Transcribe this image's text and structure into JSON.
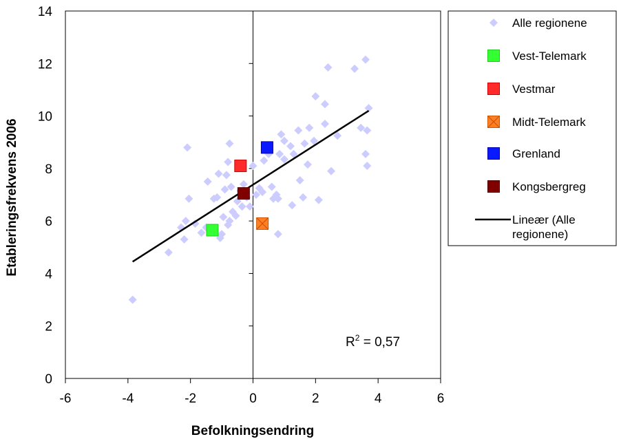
{
  "chart_data": {
    "type": "scatter",
    "xlabel": "Befolkningsendring",
    "ylabel": "Etableringsfrekvens 2006",
    "xlim": [
      -6,
      6
    ],
    "ylim": [
      0,
      14
    ],
    "x_ticks": [
      "-6",
      "-4",
      "-2",
      "0",
      "2",
      "4",
      "6"
    ],
    "y_ticks": [
      "0",
      "2",
      "4",
      "6",
      "8",
      "10",
      "12",
      "14"
    ],
    "grid": false,
    "legend_position": "right",
    "annotation": {
      "r2_prefix": "R",
      "r2_sup": "2",
      "r2_suffix": " = 0,57"
    },
    "series": [
      {
        "name": "Alle regionene",
        "marker": "diamond",
        "color": "#ccccff",
        "points": [
          [
            -3.85,
            3.0
          ],
          [
            -2.7,
            4.8
          ],
          [
            -2.2,
            5.3
          ],
          [
            -2.3,
            5.75
          ],
          [
            -2.15,
            6.0
          ],
          [
            -2.05,
            6.85
          ],
          [
            -2.1,
            8.8
          ],
          [
            -1.85,
            5.9
          ],
          [
            -1.65,
            5.55
          ],
          [
            -1.5,
            5.75
          ],
          [
            -1.45,
            7.5
          ],
          [
            -1.25,
            6.85
          ],
          [
            -1.15,
            6.9
          ],
          [
            -1.1,
            7.8
          ],
          [
            -1.05,
            5.35
          ],
          [
            -1.0,
            5.5
          ],
          [
            -0.95,
            6.15
          ],
          [
            -0.9,
            7.2
          ],
          [
            -0.85,
            7.75
          ],
          [
            -0.8,
            8.25
          ],
          [
            -0.8,
            5.85
          ],
          [
            -0.75,
            6.0
          ],
          [
            -0.75,
            8.95
          ],
          [
            -0.7,
            7.3
          ],
          [
            -0.65,
            6.35
          ],
          [
            -0.55,
            6.2
          ],
          [
            -0.5,
            6.75
          ],
          [
            -0.4,
            7.15
          ],
          [
            -0.35,
            6.55
          ],
          [
            -0.3,
            7.4
          ],
          [
            -0.2,
            6.9
          ],
          [
            -0.1,
            6.55
          ],
          [
            0.0,
            8.1
          ],
          [
            0.1,
            7.0
          ],
          [
            0.2,
            7.25
          ],
          [
            0.3,
            7.1
          ],
          [
            0.35,
            8.3
          ],
          [
            0.5,
            8.55
          ],
          [
            0.6,
            7.3
          ],
          [
            0.65,
            6.85
          ],
          [
            0.75,
            7.0
          ],
          [
            0.8,
            5.5
          ],
          [
            0.8,
            6.85
          ],
          [
            0.85,
            8.55
          ],
          [
            0.9,
            9.3
          ],
          [
            1.0,
            8.35
          ],
          [
            1.0,
            9.05
          ],
          [
            1.2,
            8.85
          ],
          [
            1.25,
            6.6
          ],
          [
            1.3,
            8.55
          ],
          [
            1.45,
            9.45
          ],
          [
            1.5,
            7.55
          ],
          [
            1.6,
            6.9
          ],
          [
            1.65,
            8.95
          ],
          [
            1.75,
            8.15
          ],
          [
            1.8,
            9.55
          ],
          [
            1.95,
            9.05
          ],
          [
            2.0,
            10.75
          ],
          [
            2.1,
            6.8
          ],
          [
            2.3,
            9.7
          ],
          [
            2.3,
            10.45
          ],
          [
            2.4,
            11.85
          ],
          [
            2.5,
            7.9
          ],
          [
            2.7,
            9.25
          ],
          [
            3.25,
            11.8
          ],
          [
            3.45,
            9.55
          ],
          [
            3.6,
            8.55
          ],
          [
            3.6,
            12.15
          ],
          [
            3.65,
            8.1
          ],
          [
            3.65,
            9.45
          ],
          [
            3.7,
            10.3
          ]
        ]
      },
      {
        "name": "Vest-Telemark",
        "marker": "square",
        "color": "#33ff33",
        "border": "#22cc22",
        "points": [
          [
            -1.3,
            5.65
          ]
        ]
      },
      {
        "name": "Vestmar",
        "marker": "square",
        "color": "#ff2a2a",
        "border": "#cc0000",
        "points": [
          [
            -0.4,
            8.1
          ]
        ]
      },
      {
        "name": "Midt-Telemark",
        "marker": "square-x",
        "color": "#ff7f27",
        "border": "#cc5500",
        "points": [
          [
            0.3,
            5.9
          ]
        ]
      },
      {
        "name": "Grenland",
        "marker": "square",
        "color": "#0a1aff",
        "border": "#0000aa",
        "points": [
          [
            0.45,
            8.8
          ]
        ]
      },
      {
        "name": "Kongsbergreg",
        "marker": "square",
        "color": "#800000",
        "border": "#4d0000",
        "points": [
          [
            -0.3,
            7.05
          ]
        ]
      },
      {
        "name": "Lineær (Alle regionene)",
        "name_lines": [
          "Lineær (Alle",
          "regionene)"
        ],
        "marker": "line",
        "color": "#000000",
        "points": [
          [
            -3.85,
            4.45
          ],
          [
            3.7,
            10.2
          ]
        ]
      }
    ]
  }
}
